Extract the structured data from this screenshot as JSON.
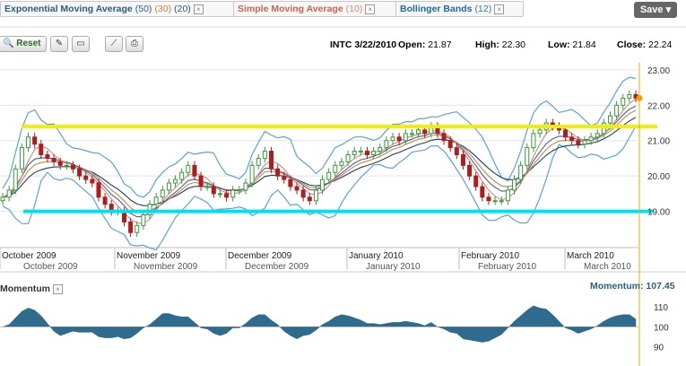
{
  "indicators": [
    {
      "name": "Exponential Moving Average",
      "params": [
        {
          "text": "(50)",
          "color": "#2a5d83"
        },
        {
          "text": "(30)",
          "color": "#c58a3c"
        },
        {
          "text": "(20)",
          "color": "#2a5d83"
        }
      ],
      "color": "#2a5d83"
    },
    {
      "name": "Simple Moving Average",
      "params": [
        {
          "text": "(10)",
          "color": "#d08a7a"
        }
      ],
      "color": "#c86450"
    },
    {
      "name": "Bollinger Bands",
      "params": [
        {
          "text": "(12)",
          "color": "#2a7fb0"
        }
      ],
      "color": "#1c6aa8"
    }
  ],
  "close_glyph": "×",
  "save_label": "Save",
  "toolbar": {
    "reset_label": "Reset"
  },
  "quote": {
    "symbol_date": "INTC 3/22/2010",
    "open_label": "Open:",
    "open": "21.87",
    "high_label": "High:",
    "high": "22.30",
    "low_label": "Low:",
    "low": "21.84",
    "close_label": "Close:",
    "close": "22.24"
  },
  "momentum": {
    "label": "Momentum",
    "value_label": "Momentum:",
    "value": "107.45"
  },
  "colors": {
    "bollinger": "#5aa3d8",
    "up": "#3a9a3a",
    "down": "#b01c1c",
    "support": "#00e0ee",
    "resistance": "#f0f000",
    "momentum": "#2f6b8c"
  },
  "chart_data": [
    {
      "type": "candlestick",
      "title": "INTC 3/22/2010",
      "ylim": [
        18.0,
        23.2
      ],
      "y_ticks": [
        "23.00",
        "22.00",
        "21.00",
        "20.00",
        "19.00"
      ],
      "x_month_labels": [
        "October 2009",
        "November 2009",
        "December 2009",
        "January 2010",
        "February 2010",
        "March 2010"
      ],
      "x_month_labels_lower": [
        "October 2009",
        "November 2009",
        "December 2009",
        "January 2010",
        "February 2010",
        "March 2010"
      ],
      "resistance_level": 21.4,
      "support_level": 19.0,
      "close": [
        19.4,
        19.6,
        20.2,
        20.8,
        21.1,
        20.9,
        20.6,
        20.5,
        20.4,
        20.3,
        20.3,
        20.2,
        20.0,
        19.9,
        19.8,
        19.4,
        19.2,
        19.0,
        19.0,
        18.7,
        18.4,
        18.6,
        18.9,
        19.2,
        19.4,
        19.6,
        19.8,
        19.9,
        20.1,
        20.3,
        20.0,
        19.7,
        19.7,
        19.5,
        19.5,
        19.4,
        19.6,
        19.6,
        19.8,
        20.3,
        20.5,
        20.7,
        20.2,
        20.0,
        19.9,
        19.7,
        19.6,
        19.4,
        19.3,
        19.6,
        19.9,
        20.1,
        20.3,
        20.4,
        20.6,
        20.7,
        20.7,
        20.6,
        20.7,
        20.8,
        21.0,
        21.1,
        21.0,
        21.2,
        21.2,
        21.3,
        21.2,
        21.4,
        21.2,
        21.0,
        20.8,
        20.6,
        20.3,
        20.0,
        19.7,
        19.4,
        19.3,
        19.3,
        19.3,
        19.6,
        19.9,
        20.3,
        20.8,
        21.2,
        21.3,
        21.5,
        21.4,
        21.3,
        21.1,
        21.0,
        20.9,
        21.0,
        21.1,
        21.2,
        21.5,
        21.7,
        22.0,
        22.2,
        22.3,
        22.2
      ],
      "momentum": {
        "ylim": [
          84,
          114
        ],
        "ticks": [
          "110",
          "100",
          "90"
        ],
        "baseline": 100
      }
    }
  ]
}
